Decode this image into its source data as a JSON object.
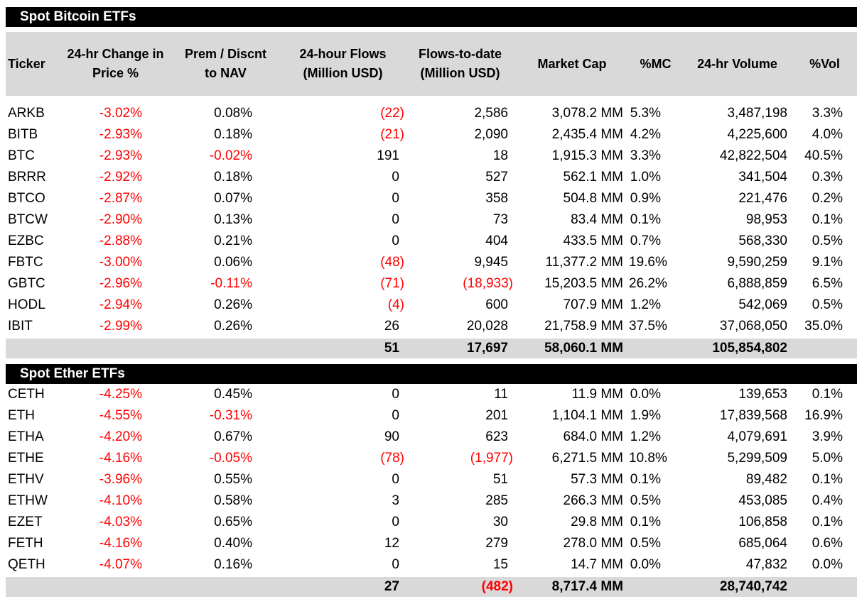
{
  "colors": {
    "negative_text": "#FF0000",
    "header_band_bg": "#D9D9D9",
    "total_row_bg": "#D9D9D9",
    "section_bar_bg": "#000000",
    "section_bar_fg": "#FFFFFF"
  },
  "columns": [
    {
      "id": "ticker",
      "lines": [
        "Ticker"
      ]
    },
    {
      "id": "change",
      "lines": [
        "24-hr Change in",
        "Price %"
      ]
    },
    {
      "id": "prem",
      "lines": [
        "Prem / Discnt",
        "to NAV"
      ]
    },
    {
      "id": "flows",
      "lines": [
        "24-hour Flows",
        "(Million USD)"
      ]
    },
    {
      "id": "flows_to_date",
      "lines": [
        "Flows-to-date",
        "(Million USD)"
      ]
    },
    {
      "id": "market_cap",
      "lines": [
        "Market Cap"
      ]
    },
    {
      "id": "pct_mc",
      "lines": [
        "%MC"
      ]
    },
    {
      "id": "volume",
      "lines": [
        "24-hr Volume"
      ]
    },
    {
      "id": "pct_vol",
      "lines": [
        "%Vol"
      ]
    }
  ],
  "sections": [
    {
      "title": "Spot Bitcoin ETFs",
      "rows": [
        {
          "ticker": "ARKB",
          "change": "-3.02%",
          "prem": "0.08%",
          "flows": "(22)",
          "flows_to_date": "2,586",
          "market_cap": "3,078.2 MM",
          "pct_mc": "5.3%",
          "volume": "3,487,198",
          "pct_vol": "3.3%"
        },
        {
          "ticker": "BITB",
          "change": "-2.93%",
          "prem": "0.18%",
          "flows": "(21)",
          "flows_to_date": "2,090",
          "market_cap": "2,435.4 MM",
          "pct_mc": "4.2%",
          "volume": "4,225,600",
          "pct_vol": "4.0%"
        },
        {
          "ticker": "BTC",
          "change": "-2.93%",
          "prem": "-0.02%",
          "flows": "191",
          "flows_to_date": "18",
          "market_cap": "1,915.3 MM",
          "pct_mc": "3.3%",
          "volume": "42,822,504",
          "pct_vol": "40.5%"
        },
        {
          "ticker": "BRRR",
          "change": "-2.92%",
          "prem": "0.18%",
          "flows": "0",
          "flows_to_date": "527",
          "market_cap": "562.1 MM",
          "pct_mc": "1.0%",
          "volume": "341,504",
          "pct_vol": "0.3%"
        },
        {
          "ticker": "BTCO",
          "change": "-2.87%",
          "prem": "0.07%",
          "flows": "0",
          "flows_to_date": "358",
          "market_cap": "504.8 MM",
          "pct_mc": "0.9%",
          "volume": "221,476",
          "pct_vol": "0.2%"
        },
        {
          "ticker": "BTCW",
          "change": "-2.90%",
          "prem": "0.13%",
          "flows": "0",
          "flows_to_date": "73",
          "market_cap": "83.4 MM",
          "pct_mc": "0.1%",
          "volume": "98,953",
          "pct_vol": "0.1%"
        },
        {
          "ticker": "EZBC",
          "change": "-2.88%",
          "prem": "0.21%",
          "flows": "0",
          "flows_to_date": "404",
          "market_cap": "433.5 MM",
          "pct_mc": "0.7%",
          "volume": "568,330",
          "pct_vol": "0.5%"
        },
        {
          "ticker": "FBTC",
          "change": "-3.00%",
          "prem": "0.06%",
          "flows": "(48)",
          "flows_to_date": "9,945",
          "market_cap": "11,377.2 MM",
          "pct_mc": "19.6%",
          "volume": "9,590,259",
          "pct_vol": "9.1%"
        },
        {
          "ticker": "GBTC",
          "change": "-2.96%",
          "prem": "-0.11%",
          "flows": "(71)",
          "flows_to_date": "(18,933)",
          "market_cap": "15,203.5 MM",
          "pct_mc": "26.2%",
          "volume": "6,888,859",
          "pct_vol": "6.5%"
        },
        {
          "ticker": "HODL",
          "change": "-2.94%",
          "prem": "0.26%",
          "flows": "(4)",
          "flows_to_date": "600",
          "market_cap": "707.9 MM",
          "pct_mc": "1.2%",
          "volume": "542,069",
          "pct_vol": "0.5%"
        },
        {
          "ticker": "IBIT",
          "change": "-2.99%",
          "prem": "0.26%",
          "flows": "26",
          "flows_to_date": "20,028",
          "market_cap": "21,758.9 MM",
          "pct_mc": "37.5%",
          "volume": "37,068,050",
          "pct_vol": "35.0%"
        }
      ],
      "totals": {
        "flows": "51",
        "flows_to_date": "17,697",
        "market_cap": "58,060.1 MM",
        "volume": "105,854,802"
      }
    },
    {
      "title": "Spot Ether ETFs",
      "rows": [
        {
          "ticker": "CETH",
          "change": "-4.25%",
          "prem": "0.45%",
          "flows": "0",
          "flows_to_date": "11",
          "market_cap": "11.9 MM",
          "pct_mc": "0.0%",
          "volume": "139,653",
          "pct_vol": "0.1%"
        },
        {
          "ticker": "ETH",
          "change": "-4.55%",
          "prem": "-0.31%",
          "flows": "0",
          "flows_to_date": "201",
          "market_cap": "1,104.1 MM",
          "pct_mc": "1.9%",
          "volume": "17,839,568",
          "pct_vol": "16.9%"
        },
        {
          "ticker": "ETHA",
          "change": "-4.20%",
          "prem": "0.67%",
          "flows": "90",
          "flows_to_date": "623",
          "market_cap": "684.0 MM",
          "pct_mc": "1.2%",
          "volume": "4,079,691",
          "pct_vol": "3.9%"
        },
        {
          "ticker": "ETHE",
          "change": "-4.16%",
          "prem": "-0.05%",
          "flows": "(78)",
          "flows_to_date": "(1,977)",
          "market_cap": "6,271.5 MM",
          "pct_mc": "10.8%",
          "volume": "5,299,509",
          "pct_vol": "5.0%"
        },
        {
          "ticker": "ETHV",
          "change": "-3.96%",
          "prem": "0.55%",
          "flows": "0",
          "flows_to_date": "51",
          "market_cap": "57.3 MM",
          "pct_mc": "0.1%",
          "volume": "89,482",
          "pct_vol": "0.1%"
        },
        {
          "ticker": "ETHW",
          "change": "-4.10%",
          "prem": "0.58%",
          "flows": "3",
          "flows_to_date": "285",
          "market_cap": "266.3 MM",
          "pct_mc": "0.5%",
          "volume": "453,085",
          "pct_vol": "0.4%"
        },
        {
          "ticker": "EZET",
          "change": "-4.03%",
          "prem": "0.65%",
          "flows": "0",
          "flows_to_date": "30",
          "market_cap": "29.8 MM",
          "pct_mc": "0.1%",
          "volume": "106,858",
          "pct_vol": "0.1%"
        },
        {
          "ticker": "FETH",
          "change": "-4.16%",
          "prem": "0.40%",
          "flows": "12",
          "flows_to_date": "279",
          "market_cap": "278.0 MM",
          "pct_mc": "0.5%",
          "volume": "685,064",
          "pct_vol": "0.6%"
        },
        {
          "ticker": "QETH",
          "change": "-4.07%",
          "prem": "0.16%",
          "flows": "0",
          "flows_to_date": "15",
          "market_cap": "14.7 MM",
          "pct_mc": "0.0%",
          "volume": "47,832",
          "pct_vol": "0.0%"
        }
      ],
      "totals": {
        "flows": "27",
        "flows_to_date": "(482)",
        "market_cap": "8,717.4 MM",
        "volume": "28,740,742"
      }
    }
  ]
}
